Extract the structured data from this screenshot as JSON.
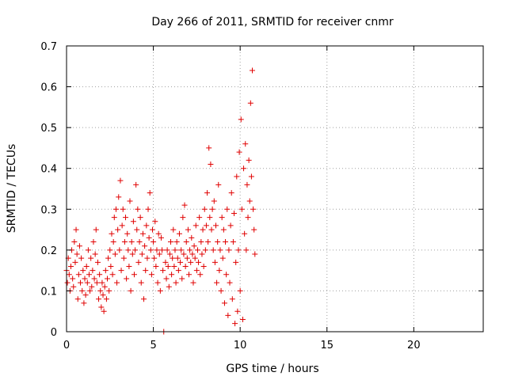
{
  "chart_data": {
    "type": "scatter",
    "title": "Day 266 of 2011, SRMTID for receiver cnmr",
    "xlabel": "GPS time / hours",
    "ylabel": "SRMTID / TECUs",
    "xlim": [
      0,
      24
    ],
    "ylim": [
      0,
      0.7
    ],
    "xticks": [
      0,
      5,
      10,
      15,
      20
    ],
    "yticks": [
      0,
      0.1,
      0.2,
      0.3,
      0.4,
      0.5,
      0.6,
      0.7
    ],
    "xtick_labels": [
      "0",
      "5",
      "10",
      "15",
      "20"
    ],
    "ytick_labels": [
      "0",
      "0.1",
      "0.2",
      "0.3",
      "0.4",
      "0.5",
      "0.6",
      "0.7"
    ],
    "grid": true,
    "series": [
      {
        "name": "SRMTID",
        "color": "#e00000",
        "marker": "plus",
        "points": [
          [
            0.0,
            0.15
          ],
          [
            0.05,
            0.12
          ],
          [
            0.1,
            0.18
          ],
          [
            0.15,
            0.14
          ],
          [
            0.2,
            0.1
          ],
          [
            0.25,
            0.16
          ],
          [
            0.3,
            0.2
          ],
          [
            0.35,
            0.13
          ],
          [
            0.4,
            0.11
          ],
          [
            0.45,
            0.22
          ],
          [
            0.5,
            0.17
          ],
          [
            0.55,
            0.25
          ],
          [
            0.6,
            0.19
          ],
          [
            0.65,
            0.08
          ],
          [
            0.7,
            0.14
          ],
          [
            0.75,
            0.21
          ],
          [
            0.8,
            0.12
          ],
          [
            0.85,
            0.18
          ],
          [
            0.9,
            0.1
          ],
          [
            0.95,
            0.15
          ],
          [
            1.0,
            0.07
          ],
          [
            1.05,
            0.13
          ],
          [
            1.1,
            0.09
          ],
          [
            1.15,
            0.16
          ],
          [
            1.2,
            0.12
          ],
          [
            1.25,
            0.2
          ],
          [
            1.3,
            0.14
          ],
          [
            1.35,
            0.1
          ],
          [
            1.4,
            0.18
          ],
          [
            1.45,
            0.11
          ],
          [
            1.5,
            0.15
          ],
          [
            1.55,
            0.22
          ],
          [
            1.6,
            0.13
          ],
          [
            1.65,
            0.19
          ],
          [
            1.7,
            0.25
          ],
          [
            1.75,
            0.12
          ],
          [
            1.8,
            0.17
          ],
          [
            1.85,
            0.08
          ],
          [
            1.9,
            0.14
          ],
          [
            1.95,
            0.1
          ],
          [
            2.0,
            0.06
          ],
          [
            2.05,
            0.12
          ],
          [
            2.1,
            0.09
          ],
          [
            2.15,
            0.05
          ],
          [
            2.2,
            0.11
          ],
          [
            2.25,
            0.15
          ],
          [
            2.3,
            0.08
          ],
          [
            2.35,
            0.13
          ],
          [
            2.4,
            0.18
          ],
          [
            2.45,
            0.1
          ],
          [
            2.5,
            0.2
          ],
          [
            2.55,
            0.16
          ],
          [
            2.6,
            0.24
          ],
          [
            2.65,
            0.14
          ],
          [
            2.7,
            0.22
          ],
          [
            2.75,
            0.28
          ],
          [
            2.8,
            0.19
          ],
          [
            2.85,
            0.3
          ],
          [
            2.9,
            0.12
          ],
          [
            2.95,
            0.25
          ],
          [
            3.0,
            0.33
          ],
          [
            3.05,
            0.2
          ],
          [
            3.1,
            0.37
          ],
          [
            3.15,
            0.15
          ],
          [
            3.2,
            0.26
          ],
          [
            3.25,
            0.3
          ],
          [
            3.3,
            0.18
          ],
          [
            3.35,
            0.22
          ],
          [
            3.4,
            0.28
          ],
          [
            3.45,
            0.13
          ],
          [
            3.5,
            0.24
          ],
          [
            3.55,
            0.2
          ],
          [
            3.6,
            0.16
          ],
          [
            3.65,
            0.32
          ],
          [
            3.7,
            0.1
          ],
          [
            3.75,
            0.22
          ],
          [
            3.8,
            0.19
          ],
          [
            3.85,
            0.27
          ],
          [
            3.9,
            0.14
          ],
          [
            3.95,
            0.2
          ],
          [
            4.0,
            0.36
          ],
          [
            4.05,
            0.25
          ],
          [
            4.1,
            0.3
          ],
          [
            4.15,
            0.17
          ],
          [
            4.2,
            0.22
          ],
          [
            4.25,
            0.28
          ],
          [
            4.3,
            0.12
          ],
          [
            4.35,
            0.19
          ],
          [
            4.4,
            0.24
          ],
          [
            4.45,
            0.08
          ],
          [
            4.5,
            0.21
          ],
          [
            4.55,
            0.15
          ],
          [
            4.6,
            0.26
          ],
          [
            4.65,
            0.18
          ],
          [
            4.7,
            0.3
          ],
          [
            4.75,
            0.23
          ],
          [
            4.8,
            0.34
          ],
          [
            4.85,
            0.2
          ],
          [
            4.9,
            0.14
          ],
          [
            4.95,
            0.25
          ],
          [
            5.0,
            0.22
          ],
          [
            5.05,
            0.18
          ],
          [
            5.1,
            0.27
          ],
          [
            5.15,
            0.16
          ],
          [
            5.2,
            0.2
          ],
          [
            5.25,
            0.12
          ],
          [
            5.3,
            0.24
          ],
          [
            5.35,
            0.19
          ],
          [
            5.4,
            0.1
          ],
          [
            5.45,
            0.23
          ],
          [
            5.5,
            0.2
          ],
          [
            5.55,
            0.15
          ],
          [
            5.6,
            0.0
          ],
          [
            5.7,
            0.17
          ],
          [
            5.75,
            0.13
          ],
          [
            5.8,
            0.2
          ],
          [
            5.85,
            0.16
          ],
          [
            5.9,
            0.11
          ],
          [
            5.95,
            0.19
          ],
          [
            6.0,
            0.22
          ],
          [
            6.05,
            0.14
          ],
          [
            6.1,
            0.18
          ],
          [
            6.15,
            0.25
          ],
          [
            6.2,
            0.16
          ],
          [
            6.25,
            0.2
          ],
          [
            6.3,
            0.12
          ],
          [
            6.35,
            0.22
          ],
          [
            6.4,
            0.18
          ],
          [
            6.45,
            0.15
          ],
          [
            6.5,
            0.24
          ],
          [
            6.55,
            0.17
          ],
          [
            6.6,
            0.2
          ],
          [
            6.65,
            0.13
          ],
          [
            6.7,
            0.28
          ],
          [
            6.75,
            0.19
          ],
          [
            6.8,
            0.31
          ],
          [
            6.85,
            0.16
          ],
          [
            6.9,
            0.22
          ],
          [
            6.95,
            0.18
          ],
          [
            7.0,
            0.25
          ],
          [
            7.05,
            0.14
          ],
          [
            7.1,
            0.2
          ],
          [
            7.15,
            0.17
          ],
          [
            7.2,
            0.23
          ],
          [
            7.25,
            0.19
          ],
          [
            7.3,
            0.12
          ],
          [
            7.35,
            0.21
          ],
          [
            7.4,
            0.18
          ],
          [
            7.45,
            0.26
          ],
          [
            7.5,
            0.15
          ],
          [
            7.55,
            0.2
          ],
          [
            7.6,
            0.17
          ],
          [
            7.65,
            0.28
          ],
          [
            7.7,
            0.14
          ],
          [
            7.75,
            0.22
          ],
          [
            7.8,
            0.19
          ],
          [
            7.85,
            0.25
          ],
          [
            7.9,
            0.16
          ],
          [
            7.95,
            0.3
          ],
          [
            8.0,
            0.2
          ],
          [
            8.05,
            0.26
          ],
          [
            8.1,
            0.34
          ],
          [
            8.15,
            0.22
          ],
          [
            8.2,
            0.45
          ],
          [
            8.25,
            0.28
          ],
          [
            8.3,
            0.41
          ],
          [
            8.35,
            0.25
          ],
          [
            8.4,
            0.3
          ],
          [
            8.45,
            0.2
          ],
          [
            8.5,
            0.32
          ],
          [
            8.55,
            0.17
          ],
          [
            8.6,
            0.26
          ],
          [
            8.65,
            0.12
          ],
          [
            8.7,
            0.22
          ],
          [
            8.75,
            0.36
          ],
          [
            8.8,
            0.15
          ],
          [
            8.85,
            0.2
          ],
          [
            8.9,
            0.1
          ],
          [
            8.95,
            0.28
          ],
          [
            9.0,
            0.18
          ],
          [
            9.05,
            0.25
          ],
          [
            9.1,
            0.07
          ],
          [
            9.15,
            0.22
          ],
          [
            9.2,
            0.14
          ],
          [
            9.25,
            0.3
          ],
          [
            9.3,
            0.04
          ],
          [
            9.35,
            0.2
          ],
          [
            9.4,
            0.12
          ],
          [
            9.45,
            0.26
          ],
          [
            9.5,
            0.34
          ],
          [
            9.55,
            0.08
          ],
          [
            9.6,
            0.22
          ],
          [
            9.65,
            0.29
          ],
          [
            9.7,
            0.02
          ],
          [
            9.75,
            0.17
          ],
          [
            9.8,
            0.38
          ],
          [
            9.85,
            0.05
          ],
          [
            9.9,
            0.2
          ],
          [
            9.95,
            0.44
          ],
          [
            10.0,
            0.1
          ],
          [
            10.05,
            0.52
          ],
          [
            10.1,
            0.3
          ],
          [
            10.15,
            0.03
          ],
          [
            10.2,
            0.4
          ],
          [
            10.25,
            0.24
          ],
          [
            10.3,
            0.46
          ],
          [
            10.35,
            0.2
          ],
          [
            10.4,
            0.36
          ],
          [
            10.45,
            0.28
          ],
          [
            10.5,
            0.42
          ],
          [
            10.55,
            0.32
          ],
          [
            10.6,
            0.56
          ],
          [
            10.65,
            0.38
          ],
          [
            10.7,
            0.64
          ],
          [
            10.75,
            0.3
          ],
          [
            10.8,
            0.25
          ],
          [
            10.85,
            0.19
          ]
        ]
      }
    ]
  }
}
